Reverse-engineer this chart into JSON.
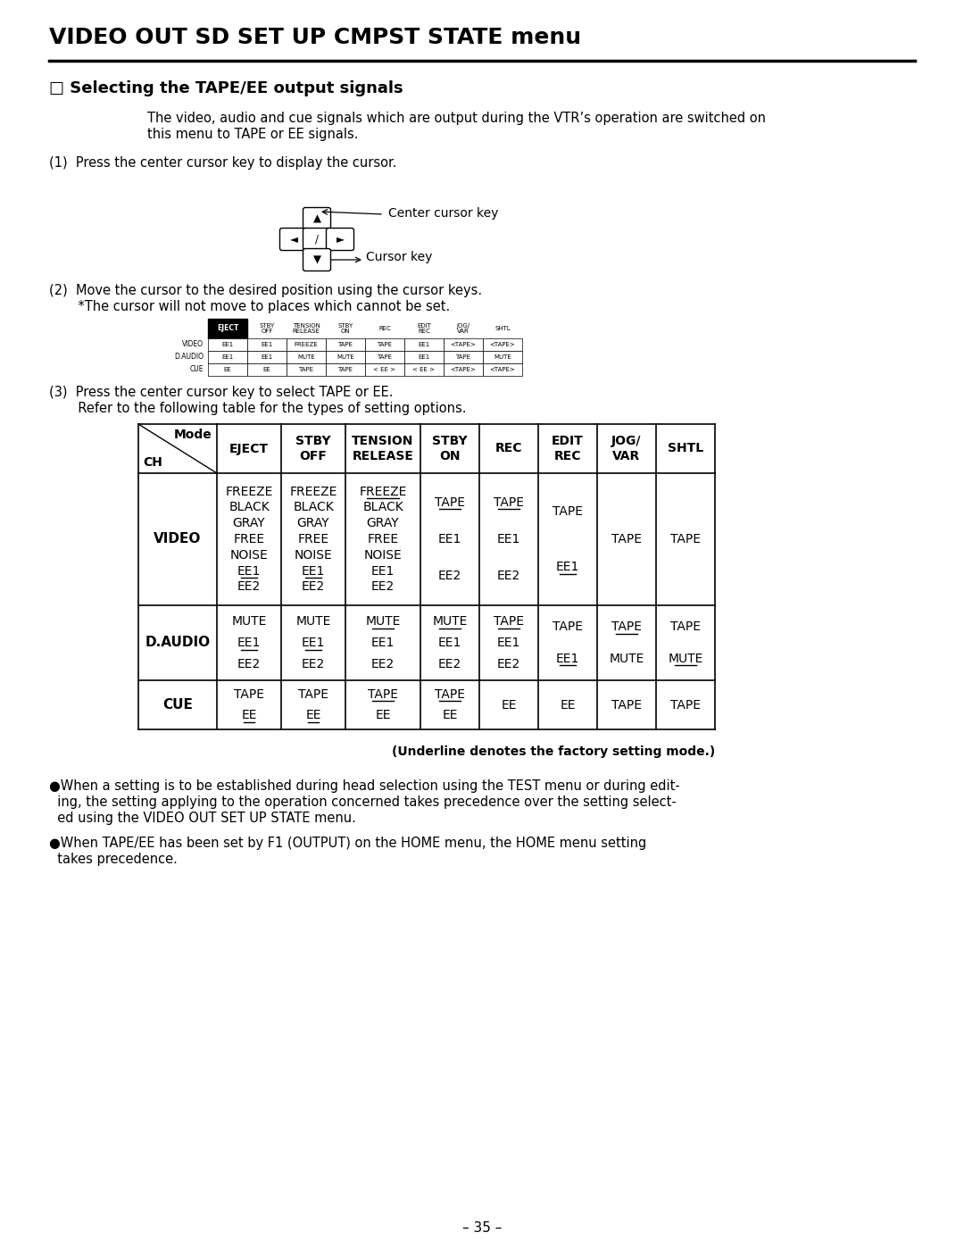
{
  "title": "VIDEO OUT SD SET UP CMPST STATE menu",
  "subtitle": "□ Selecting the TAPE/EE output signals",
  "bg_color": "#ffffff",
  "body_text_1a": "The video, audio and cue signals which are output during the VTR’s operation are switched on",
  "body_text_1b": "this menu to TAPE or EE signals.",
  "step1_text": "(1)  Press the center cursor key to display the cursor.",
  "center_cursor_label": "Center cursor key",
  "cursor_label": "Cursor key",
  "step2_line1": "(2)  Move the cursor to the desired position using the cursor keys.",
  "step2_line2": "       *The cursor will not move to places which cannot be set.",
  "step3_line1": "(3)  Press the center cursor key to select TAPE or EE.",
  "step3_line2": "       Refer to the following table for the types of setting options.",
  "table_headers": [
    "",
    "EJECT",
    "STBY\nOFF",
    "TENSION\nRELEASE",
    "STBY\nON",
    "REC",
    "EDIT\nREC",
    "JOG/\nVAR",
    "SHTL"
  ],
  "underline_note": "(Underline denotes the factory setting mode.)",
  "bullet1a": "●When a setting is to be established during head selection using the TEST menu or during edit-",
  "bullet1b": "  ing, the setting applying to the operation concerned takes precedence over the setting select-",
  "bullet1c": "  ed using the VIDEO OUT SET UP STATE menu.",
  "bullet2a": "●When TAPE/EE has been set by F1 (OUTPUT) on the HOME menu, the HOME menu setting",
  "bullet2b": "  takes precedence.",
  "page_number": "– 35 –",
  "ml": 55,
  "mr": 1025,
  "indent": 165
}
